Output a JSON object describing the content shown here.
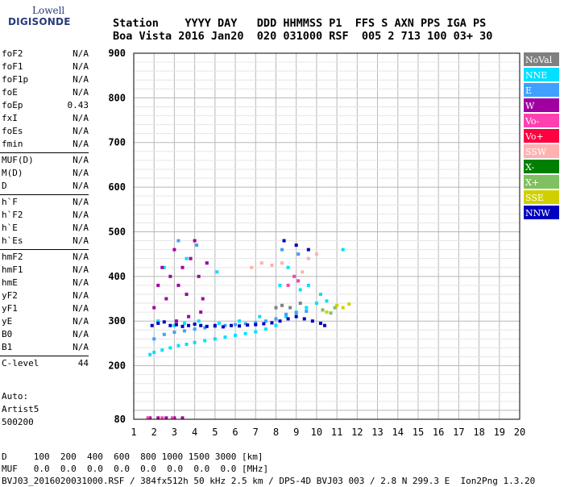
{
  "logo": {
    "line1": "Lowell",
    "line2": "DIGISONDE"
  },
  "header": {
    "line1": "Station    YYYY DAY   DDD HHMMSS P1  FFS S AXN PPS IGA PS",
    "line2": "Boa Vista 2016 Jan20  020 031000 RSF  005 2 713 100 03+ 30"
  },
  "params": [
    {
      "name": "foF2",
      "value": "N/A"
    },
    {
      "name": "foF1",
      "value": "N/A"
    },
    {
      "name": "foF1p",
      "value": "N/A"
    },
    {
      "name": "foE",
      "value": "N/A"
    },
    {
      "name": "foEp",
      "value": "0.43"
    },
    {
      "name": "fxI",
      "value": "N/A"
    },
    {
      "name": "foEs",
      "value": "N/A"
    },
    {
      "name": "fmin",
      "value": "N/A"
    },
    {
      "name": "MUF(D)",
      "value": "N/A"
    },
    {
      "name": "M(D)",
      "value": "N/A"
    },
    {
      "name": "D",
      "value": "N/A"
    },
    {
      "name": "h`F",
      "value": "N/A"
    },
    {
      "name": "h`F2",
      "value": "N/A"
    },
    {
      "name": "h`E",
      "value": "N/A"
    },
    {
      "name": "h`Es",
      "value": "N/A"
    },
    {
      "name": "hmF2",
      "value": "N/A"
    },
    {
      "name": "hmF1",
      "value": "N/A"
    },
    {
      "name": "hmE",
      "value": "N/A"
    },
    {
      "name": "yF2",
      "value": "N/A"
    },
    {
      "name": "yF1",
      "value": "N/A"
    },
    {
      "name": "yE",
      "value": "N/A"
    },
    {
      "name": "B0",
      "value": "N/A"
    },
    {
      "name": "B1",
      "value": "N/A"
    },
    {
      "name": "C-level",
      "value": "44"
    }
  ],
  "auto": {
    "line1": "Auto:",
    "line2": "Artist5",
    "line3": "500200"
  },
  "bottom": {
    "line1": "D     100  200  400  600  800 1000 1500 3000 [km]",
    "line2": "MUF   0.0  0.0  0.0  0.0  0.0  0.0  0.0  0.0 [MHz]",
    "line3": "BVJ03_2016020031000.RSF / 384fx512h 50 kHz 2.5 km / DPS-4D BVJ03 003 / 2.8 N 299.3 E  Ion2Png 1.3.20"
  },
  "legend": [
    {
      "label": "NoVal",
      "color": "#808080"
    },
    {
      "label": "NNE",
      "color": "#00e0ff"
    },
    {
      "label": "E",
      "color": "#40a0ff"
    },
    {
      "label": "W",
      "color": "#a000a0"
    },
    {
      "label": "Vo-",
      "color": "#ff40b0"
    },
    {
      "label": "Vo+",
      "color": "#ff0040"
    },
    {
      "label": "SSW",
      "color": "#ffb0b0"
    },
    {
      "label": "X-",
      "color": "#008000"
    },
    {
      "label": "X+",
      "color": "#80c060"
    },
    {
      "label": "SSE",
      "color": "#d0d000"
    },
    {
      "label": "NNW",
      "color": "#0000c0"
    }
  ],
  "chart_data": {
    "type": "scatter",
    "title": "",
    "xlabel": "",
    "ylabel": "",
    "xlim": [
      1,
      20
    ],
    "ylim": [
      80,
      900
    ],
    "x_ticks": [
      1,
      2,
      3,
      4,
      5,
      6,
      7,
      8,
      9,
      10,
      11,
      12,
      13,
      14,
      15,
      16,
      17,
      18,
      19,
      20
    ],
    "y_ticks": [
      100,
      200,
      300,
      400,
      500,
      600,
      700,
      800,
      900
    ],
    "y_tick_labels_shown": [
      200,
      300,
      400,
      500,
      600,
      700,
      800,
      900
    ],
    "grid": true,
    "series": [
      {
        "name": "NNE",
        "color": "#00e0ff",
        "points": [
          [
            1.8,
            225
          ],
          [
            2.0,
            230
          ],
          [
            2.4,
            235
          ],
          [
            2.8,
            240
          ],
          [
            3.2,
            245
          ],
          [
            3.6,
            248
          ],
          [
            4.0,
            252
          ],
          [
            4.5,
            256
          ],
          [
            5.0,
            260
          ],
          [
            5.5,
            264
          ],
          [
            6.0,
            268
          ],
          [
            6.5,
            272
          ],
          [
            7.0,
            276
          ],
          [
            7.5,
            282
          ],
          [
            8.0,
            290
          ],
          [
            8.5,
            310
          ],
          [
            9.0,
            320
          ],
          [
            9.5,
            330
          ],
          [
            10.0,
            340
          ],
          [
            10.5,
            345
          ],
          [
            2.2,
            300
          ],
          [
            3.0,
            290
          ],
          [
            3.5,
            295
          ],
          [
            4.2,
            300
          ],
          [
            5.2,
            295
          ],
          [
            6.2,
            300
          ],
          [
            7.2,
            310
          ],
          [
            8.2,
            380
          ],
          [
            8.6,
            420
          ],
          [
            9.2,
            370
          ],
          [
            9.6,
            380
          ],
          [
            10.2,
            360
          ],
          [
            11.3,
            460
          ],
          [
            2.5,
            420
          ],
          [
            3.6,
            440
          ],
          [
            4.6,
            430
          ],
          [
            5.1,
            410
          ]
        ]
      },
      {
        "name": "E",
        "color": "#40a0ff",
        "points": [
          [
            2.0,
            260
          ],
          [
            2.5,
            270
          ],
          [
            3.0,
            275
          ],
          [
            3.5,
            278
          ],
          [
            4.0,
            282
          ],
          [
            4.5,
            285
          ],
          [
            5.0,
            288
          ],
          [
            5.5,
            290
          ],
          [
            6.0,
            292
          ],
          [
            6.5,
            294
          ],
          [
            7.0,
            296
          ],
          [
            7.5,
            300
          ],
          [
            8.0,
            305
          ],
          [
            8.5,
            315
          ],
          [
            9.0,
            318
          ],
          [
            9.5,
            322
          ],
          [
            3.2,
            480
          ],
          [
            4.1,
            470
          ],
          [
            8.3,
            460
          ],
          [
            9.1,
            450
          ]
        ]
      },
      {
        "name": "W",
        "color": "#a000a0",
        "points": [
          [
            2.0,
            330
          ],
          [
            2.2,
            380
          ],
          [
            2.4,
            420
          ],
          [
            2.6,
            350
          ],
          [
            2.8,
            400
          ],
          [
            3.0,
            460
          ],
          [
            3.2,
            380
          ],
          [
            3.4,
            420
          ],
          [
            3.6,
            360
          ],
          [
            3.8,
            440
          ],
          [
            4.0,
            480
          ],
          [
            4.2,
            400
          ],
          [
            4.4,
            350
          ],
          [
            4.6,
            430
          ],
          [
            3.1,
            300
          ],
          [
            3.7,
            310
          ],
          [
            4.3,
            320
          ],
          [
            1.8,
            83
          ],
          [
            2.2,
            83
          ],
          [
            2.6,
            83
          ],
          [
            3.0,
            83
          ],
          [
            3.4,
            83
          ]
        ]
      },
      {
        "name": "Vo-",
        "color": "#ff40b0",
        "points": [
          [
            8.6,
            380
          ],
          [
            8.9,
            400
          ],
          [
            9.1,
            390
          ],
          [
            1.7,
            83
          ],
          [
            2.4,
            83
          ],
          [
            2.9,
            83
          ]
        ]
      },
      {
        "name": "SSW",
        "color": "#ffb0b0",
        "points": [
          [
            6.8,
            420
          ],
          [
            7.3,
            430
          ],
          [
            7.8,
            425
          ],
          [
            8.3,
            430
          ],
          [
            9.3,
            410
          ],
          [
            9.6,
            440
          ],
          [
            10.0,
            450
          ]
        ]
      },
      {
        "name": "NoVal",
        "color": "#808080",
        "points": [
          [
            8.0,
            330
          ],
          [
            8.3,
            335
          ],
          [
            8.7,
            330
          ],
          [
            9.2,
            340
          ]
        ]
      },
      {
        "name": "X+",
        "color": "#80c060",
        "points": [
          [
            10.3,
            325
          ],
          [
            10.7,
            318
          ],
          [
            10.9,
            330
          ]
        ]
      },
      {
        "name": "SSE",
        "color": "#d0d000",
        "points": [
          [
            11.0,
            335
          ],
          [
            11.3,
            330
          ],
          [
            11.6,
            338
          ],
          [
            10.5,
            320
          ]
        ]
      },
      {
        "name": "NNW",
        "color": "#0000c0",
        "points": [
          [
            1.9,
            290
          ],
          [
            2.2,
            295
          ],
          [
            2.5,
            298
          ],
          [
            2.8,
            290
          ],
          [
            3.1,
            292
          ],
          [
            3.4,
            288
          ],
          [
            3.7,
            290
          ],
          [
            4.0,
            293
          ],
          [
            4.3,
            290
          ],
          [
            4.6,
            288
          ],
          [
            5.0,
            290
          ],
          [
            5.4,
            287
          ],
          [
            5.8,
            290
          ],
          [
            6.2,
            289
          ],
          [
            6.6,
            291
          ],
          [
            7.0,
            292
          ],
          [
            7.4,
            294
          ],
          [
            7.8,
            296
          ],
          [
            8.2,
            300
          ],
          [
            8.6,
            305
          ],
          [
            9.0,
            310
          ],
          [
            9.4,
            305
          ],
          [
            9.8,
            300
          ],
          [
            10.2,
            295
          ],
          [
            8.4,
            480
          ],
          [
            9.0,
            470
          ],
          [
            9.6,
            460
          ],
          [
            10.4,
            290
          ]
        ]
      }
    ]
  }
}
